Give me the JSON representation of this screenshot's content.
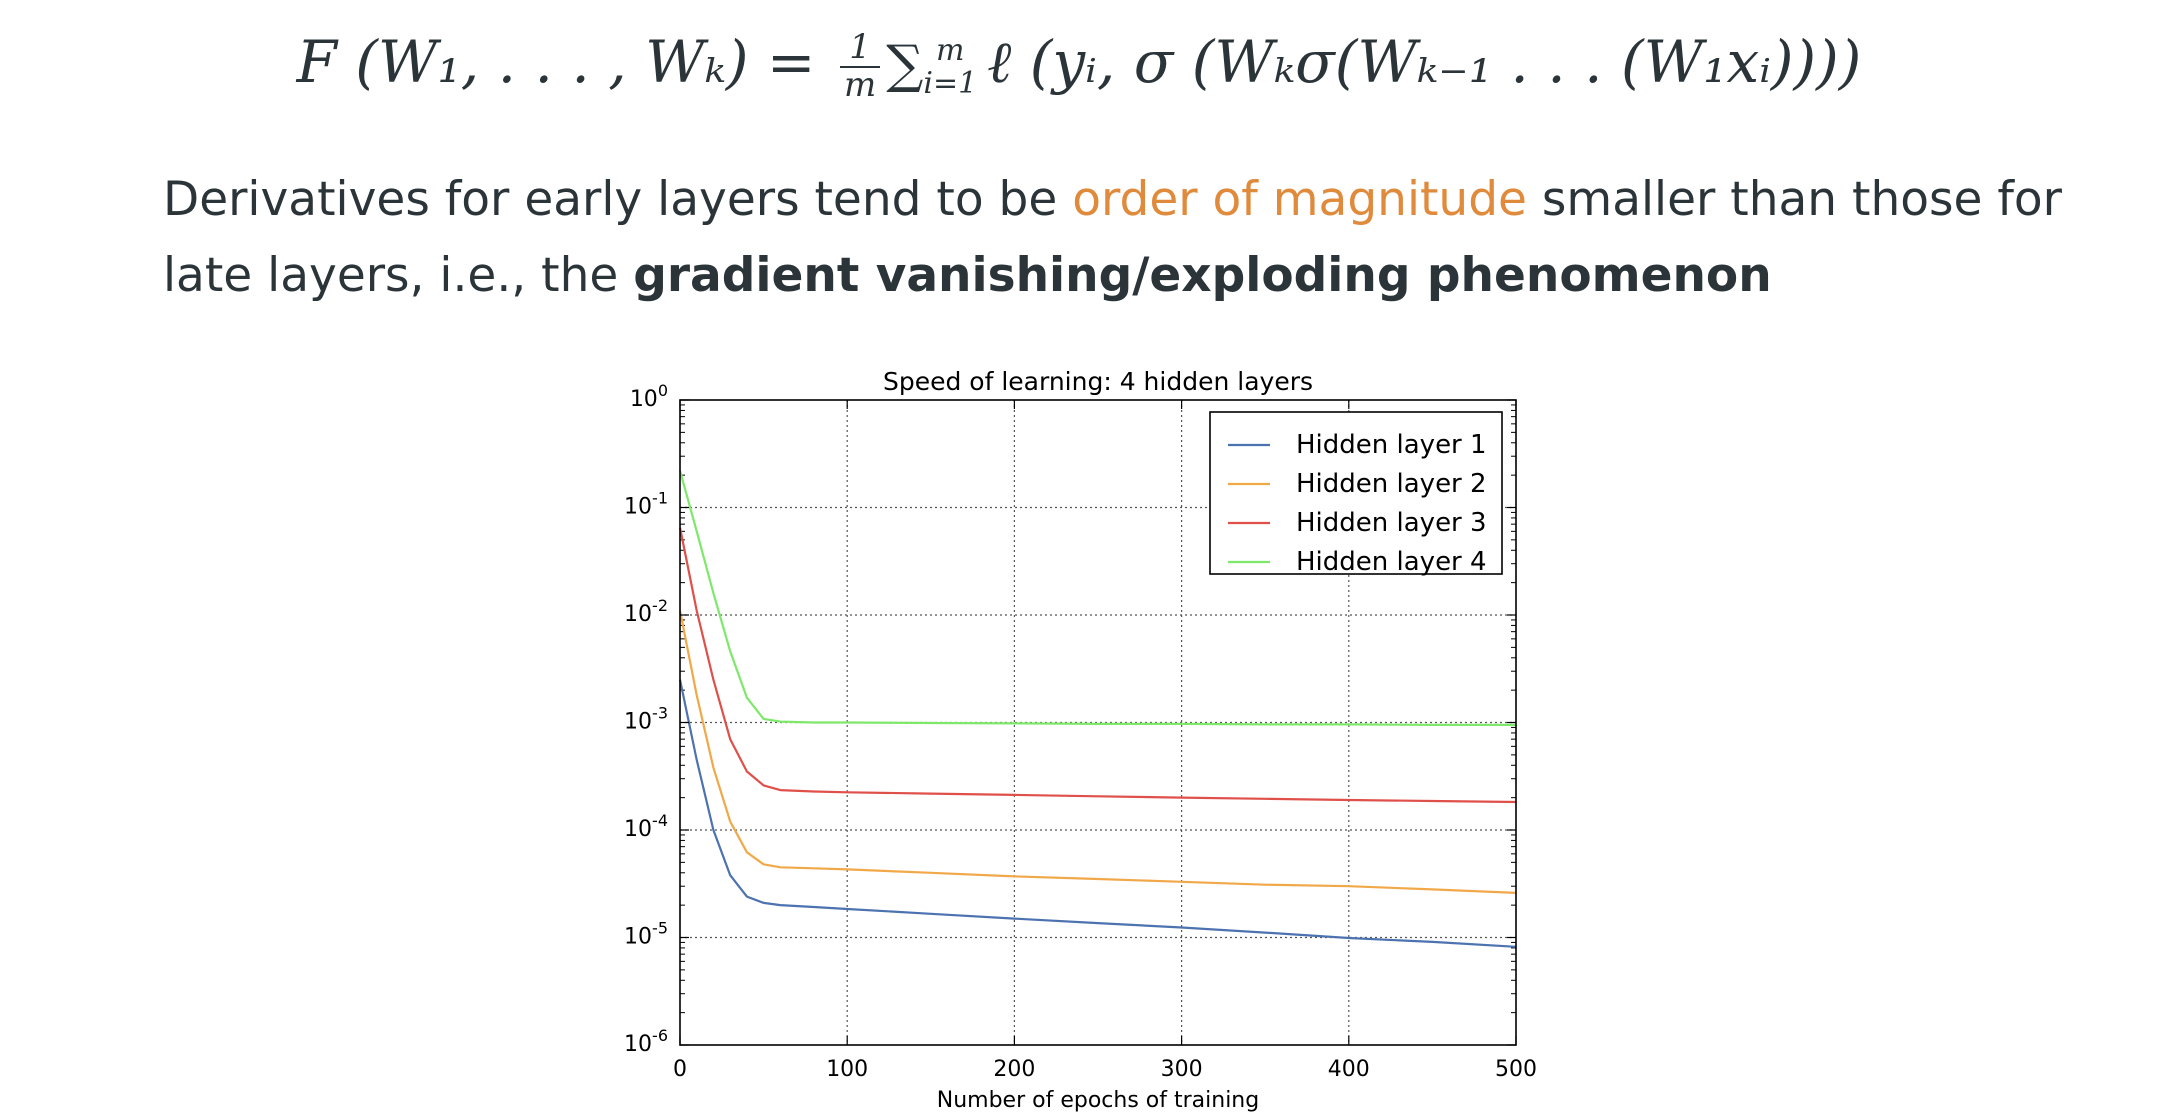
{
  "slide": {
    "formula": {
      "lhs": "F (W₁, . . . , Wₖ) = ",
      "frac_num": "1",
      "frac_den": "m",
      "sum_symbol": "∑",
      "sum_top": "m",
      "sum_bottom": "i=1",
      "rhs": "ℓ (yᵢ, σ (Wₖσ(Wₖ₋₁ . . . (W₁xᵢ))))"
    },
    "text": {
      "part1": "Derivatives for early layers tend to be ",
      "highlight": "order of magnitude",
      "part2": " smaller than those for late layers, i.e., the ",
      "bold": "gradient vanishing/exploding phenomenon"
    },
    "accent_color": "#e08a3c"
  },
  "chart_data": {
    "type": "line",
    "title": "Speed of learning: 4 hidden layers",
    "xlabel": "Number of epochs of training",
    "ylabel": "",
    "xlim": [
      0,
      500
    ],
    "ylim": [
      1e-06,
      1
    ],
    "yscale": "log",
    "grid": true,
    "legend_position": "top-right",
    "x_ticks": [
      "0",
      "100",
      "200",
      "300",
      "400",
      "500"
    ],
    "y_ticks": [
      {
        "base": "10",
        "exp": "0"
      },
      {
        "base": "10",
        "exp": "-1"
      },
      {
        "base": "10",
        "exp": "-2"
      },
      {
        "base": "10",
        "exp": "-3"
      },
      {
        "base": "10",
        "exp": "-4"
      },
      {
        "base": "10",
        "exp": "-5"
      },
      {
        "base": "10",
        "exp": "-6"
      }
    ],
    "x": [
      0,
      10,
      20,
      30,
      40,
      50,
      60,
      80,
      100,
      150,
      200,
      250,
      300,
      350,
      400,
      450,
      500
    ],
    "series": [
      {
        "name": "Hidden layer 1",
        "color": "#4c72b0",
        "values": [
          0.0025,
          0.00045,
          0.0001,
          3.8e-05,
          2.4e-05,
          2.1e-05,
          2e-05,
          1.92e-05,
          1.84e-05,
          1.66e-05,
          1.5e-05,
          1.36e-05,
          1.24e-05,
          1.11e-05,
          9.9e-06,
          9.1e-06,
          8.2e-06
        ]
      },
      {
        "name": "Hidden layer 2",
        "color": "#f0a848",
        "values": [
          0.011,
          0.0018,
          0.00038,
          0.00012,
          6.2e-05,
          4.8e-05,
          4.5e-05,
          4.4e-05,
          4.3e-05,
          4e-05,
          3.7e-05,
          3.5e-05,
          3.3e-05,
          3.1e-05,
          3e-05,
          2.8e-05,
          2.6e-05
        ]
      },
      {
        "name": "Hidden layer 3",
        "color": "#e0504a",
        "values": [
          0.065,
          0.011,
          0.0025,
          0.0007,
          0.00035,
          0.00026,
          0.000235,
          0.000228,
          0.000224,
          0.000218,
          0.000212,
          0.000206,
          0.0002,
          0.000195,
          0.00019,
          0.000186,
          0.000182
        ]
      },
      {
        "name": "Hidden layer 4",
        "color": "#7ee86a",
        "values": [
          0.22,
          0.06,
          0.016,
          0.0046,
          0.0017,
          0.00108,
          0.00102,
          0.001,
          0.001,
          0.00099,
          0.00098,
          0.00097,
          0.00097,
          0.00096,
          0.00096,
          0.00095,
          0.00095
        ]
      }
    ]
  }
}
